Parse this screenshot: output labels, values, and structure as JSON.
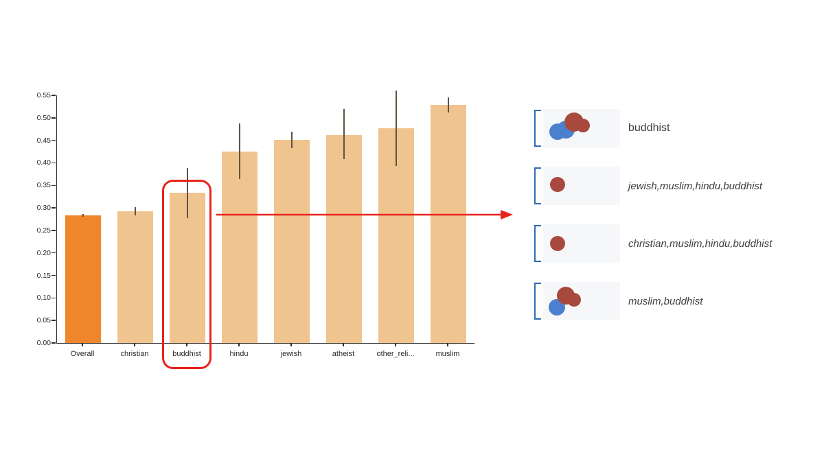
{
  "chart_data": {
    "type": "bar",
    "title": "",
    "xlabel": "",
    "ylabel": "",
    "categories": [
      "Overall",
      "christian",
      "buddhist",
      "hindu",
      "jewish",
      "atheist",
      "other_reli...",
      "muslim"
    ],
    "values": [
      0.284,
      0.292,
      0.334,
      0.425,
      0.451,
      0.462,
      0.477,
      0.528
    ],
    "error_low": [
      0.281,
      0.284,
      0.277,
      0.364,
      0.432,
      0.408,
      0.393,
      0.512
    ],
    "error_high": [
      0.287,
      0.301,
      0.389,
      0.487,
      0.47,
      0.519,
      0.561,
      0.546
    ],
    "ylim": [
      0,
      0.55
    ],
    "ytick_step": 0.05,
    "grid": false,
    "legend_position": "right",
    "highlighted_category": "buddhist",
    "colors": {
      "overall_bar": "#f0862c",
      "bar": "#efc48e",
      "error": "#5e5244",
      "axis": "#2b2b2b",
      "highlight": "#e8231d"
    }
  },
  "legend": {
    "palette": {
      "blue": "#4b80d1",
      "red": "#a74a3d"
    },
    "rows": [
      {
        "label": "buddhist",
        "italic": false,
        "circles": [
          {
            "c": "blue",
            "x": 21,
            "y": 33,
            "r": 12
          },
          {
            "c": "blue",
            "x": 33,
            "y": 30,
            "r": 13
          },
          {
            "c": "red",
            "x": 45,
            "y": 19,
            "r": 14
          },
          {
            "c": "red",
            "x": 58,
            "y": 24,
            "r": 10
          }
        ]
      },
      {
        "label": "jewish,muslim,hindu,buddhist",
        "italic": true,
        "circles": [
          {
            "c": "red",
            "x": 21,
            "y": 26,
            "r": 11
          }
        ]
      },
      {
        "label": "christian,muslim,hindu,buddhist",
        "italic": true,
        "circles": [
          {
            "c": "red",
            "x": 21,
            "y": 28,
            "r": 11
          }
        ]
      },
      {
        "label": "muslim,buddhist",
        "italic": true,
        "circles": [
          {
            "c": "blue",
            "x": 20,
            "y": 37,
            "r": 12
          },
          {
            "c": "red",
            "x": 33,
            "y": 20,
            "r": 13
          },
          {
            "c": "red",
            "x": 45,
            "y": 26,
            "r": 10
          }
        ]
      }
    ]
  }
}
